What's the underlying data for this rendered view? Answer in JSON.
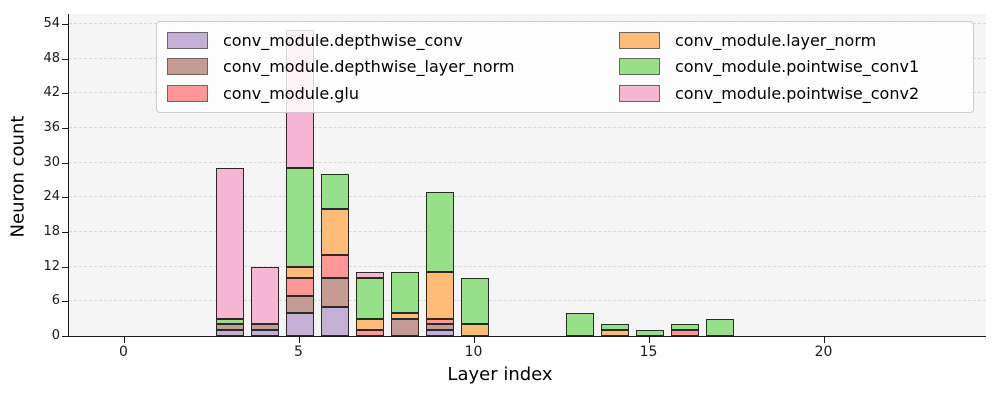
{
  "figure": {
    "background": "#ffffff",
    "plot_background": "#f5f5f5",
    "gridline_color": "#d8d8d8",
    "spine_color": "#1a1a1a"
  },
  "chart_data": {
    "type": "bar",
    "stacked": true,
    "title": "",
    "xlabel": "Layer index",
    "ylabel": "Neuron count",
    "x_ticks": [
      0,
      5,
      10,
      15,
      20
    ],
    "y_ticks": [
      0,
      6,
      12,
      18,
      24,
      30,
      36,
      42,
      48,
      54
    ],
    "xlim": [
      -1.6,
      24.6
    ],
    "ylim": [
      0,
      55.7
    ],
    "grid": "horizontal-dashed",
    "legend_position": "upper-center",
    "legend_columns": 2,
    "bar_edge_color": "#2a2a2a",
    "x": [
      3,
      4,
      5,
      6,
      7,
      8,
      9,
      10,
      13,
      14,
      15,
      16,
      17
    ],
    "series": [
      {
        "name": "conv_module.depthwise_conv",
        "color": "#c5b0d5",
        "values": [
          1,
          1,
          4,
          5,
          0,
          0,
          1,
          0,
          0,
          0,
          0,
          0,
          0
        ]
      },
      {
        "name": "conv_module.depthwise_layer_norm",
        "color": "#c49c94",
        "values": [
          1,
          1,
          3,
          5,
          0,
          3,
          1,
          0,
          0,
          0,
          0,
          0,
          0
        ]
      },
      {
        "name": "conv_module.glu",
        "color": "#ff9896",
        "values": [
          0,
          0,
          3,
          4,
          1,
          0,
          1,
          0,
          0,
          0,
          0,
          1,
          0
        ]
      },
      {
        "name": "conv_module.layer_norm",
        "color": "#ffbb78",
        "values": [
          0,
          0,
          2,
          8,
          2,
          1,
          8,
          2,
          0,
          1,
          0,
          0,
          0
        ]
      },
      {
        "name": "conv_module.pointwise_conv1",
        "color": "#98df8a",
        "values": [
          1,
          0,
          17,
          6,
          7,
          7,
          14,
          8,
          4,
          1,
          1,
          1,
          3
        ]
      },
      {
        "name": "conv_module.pointwise_conv2",
        "color": "#f7b6d2",
        "values": [
          26,
          10,
          24,
          0,
          1,
          0,
          0,
          0,
          0,
          0,
          0,
          0,
          0
        ]
      }
    ],
    "bar_totals": [
      29,
      12,
      53,
      28,
      11,
      11,
      25,
      10,
      4,
      2,
      1,
      2,
      3
    ]
  }
}
